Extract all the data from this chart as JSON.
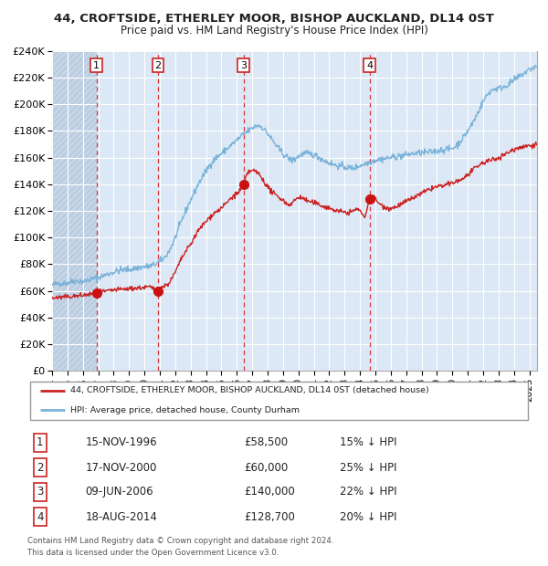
{
  "title1": "44, CROFTSIDE, ETHERLEY MOOR, BISHOP AUCKLAND, DL14 0ST",
  "title2": "Price paid vs. HM Land Registry's House Price Index (HPI)",
  "legend_line1": "44, CROFTSIDE, ETHERLEY MOOR, BISHOP AUCKLAND, DL14 0ST (detached house)",
  "legend_line2": "HPI: Average price, detached house, County Durham",
  "footer1": "Contains HM Land Registry data © Crown copyright and database right 2024.",
  "footer2": "This data is licensed under the Open Government Licence v3.0.",
  "transactions": [
    {
      "num": 1,
      "date": "15-NOV-1996",
      "price": 58500,
      "price_str": "£58,500",
      "pct": "15%",
      "x_year": 1996.88
    },
    {
      "num": 2,
      "date": "17-NOV-2000",
      "price": 60000,
      "price_str": "£60,000",
      "pct": "25%",
      "x_year": 2000.88
    },
    {
      "num": 3,
      "date": "09-JUN-2006",
      "price": 140000,
      "price_str": "£140,000",
      "pct": "22%",
      "x_year": 2006.44
    },
    {
      "num": 4,
      "date": "18-AUG-2014",
      "price": 128700,
      "price_str": "£128,700",
      "pct": "20%",
      "x_year": 2014.63
    }
  ],
  "xmin": 1994.0,
  "xmax": 2025.5,
  "ymin": 0,
  "ymax": 240000,
  "ytick_vals": [
    0,
    20000,
    40000,
    60000,
    80000,
    100000,
    120000,
    140000,
    160000,
    180000,
    200000,
    220000,
    240000
  ],
  "ytick_labels": [
    "£0",
    "£20K",
    "£40K",
    "£60K",
    "£80K",
    "£100K",
    "£120K",
    "£140K",
    "£160K",
    "£180K",
    "£200K",
    "£220K",
    "£240K"
  ],
  "background_color": "#ffffff",
  "plot_bg_color": "#dce8f5",
  "hatch_color": "#c5d5e8",
  "grid_color": "#ffffff",
  "hpi_color": "#7ab3d9",
  "price_color": "#cc2222",
  "dashed_line_color": "#dd3333",
  "marker_color": "#cc1111",
  "hpi_pts": [
    [
      1994.0,
      64000
    ],
    [
      1994.5,
      65500
    ],
    [
      1995.0,
      66000
    ],
    [
      1995.5,
      67500
    ],
    [
      1996.0,
      67000
    ],
    [
      1996.5,
      68500
    ],
    [
      1997.0,
      70000
    ],
    [
      1997.5,
      72000
    ],
    [
      1998.0,
      74000
    ],
    [
      1998.5,
      75500
    ],
    [
      1999.0,
      76000
    ],
    [
      1999.5,
      77000
    ],
    [
      2000.0,
      78000
    ],
    [
      2000.5,
      79000
    ],
    [
      2001.0,
      82000
    ],
    [
      2001.5,
      88000
    ],
    [
      2002.0,
      100000
    ],
    [
      2002.5,
      115000
    ],
    [
      2003.0,
      128000
    ],
    [
      2003.5,
      140000
    ],
    [
      2004.0,
      150000
    ],
    [
      2004.5,
      158000
    ],
    [
      2005.0,
      163000
    ],
    [
      2005.5,
      168000
    ],
    [
      2006.0,
      173000
    ],
    [
      2006.5,
      178000
    ],
    [
      2007.0,
      182000
    ],
    [
      2007.3,
      184000
    ],
    [
      2007.6,
      183000
    ],
    [
      2008.0,
      178000
    ],
    [
      2008.5,
      170000
    ],
    [
      2009.0,
      163000
    ],
    [
      2009.3,
      160000
    ],
    [
      2009.6,
      158000
    ],
    [
      2010.0,
      161000
    ],
    [
      2010.5,
      163000
    ],
    [
      2011.0,
      162000
    ],
    [
      2011.5,
      159000
    ],
    [
      2012.0,
      156000
    ],
    [
      2012.5,
      154000
    ],
    [
      2013.0,
      153000
    ],
    [
      2013.5,
      152000
    ],
    [
      2014.0,
      154000
    ],
    [
      2014.5,
      156000
    ],
    [
      2015.0,
      158000
    ],
    [
      2015.5,
      159000
    ],
    [
      2016.0,
      160000
    ],
    [
      2016.5,
      161000
    ],
    [
      2017.0,
      162000
    ],
    [
      2017.5,
      163000
    ],
    [
      2018.0,
      163500
    ],
    [
      2018.5,
      164000
    ],
    [
      2019.0,
      165000
    ],
    [
      2019.5,
      166000
    ],
    [
      2020.0,
      167000
    ],
    [
      2020.5,
      172000
    ],
    [
      2021.0,
      180000
    ],
    [
      2021.5,
      190000
    ],
    [
      2022.0,
      202000
    ],
    [
      2022.5,
      210000
    ],
    [
      2023.0,
      212000
    ],
    [
      2023.5,
      214000
    ],
    [
      2024.0,
      218000
    ],
    [
      2024.5,
      222000
    ],
    [
      2025.0,
      226000
    ],
    [
      2025.5,
      228000
    ]
  ],
  "price_pts": [
    [
      1994.0,
      54500
    ],
    [
      1994.5,
      55000
    ],
    [
      1995.0,
      55500
    ],
    [
      1995.5,
      56000
    ],
    [
      1996.0,
      56500
    ],
    [
      1996.5,
      57500
    ],
    [
      1996.88,
      58500
    ],
    [
      1997.0,
      58800
    ],
    [
      1997.5,
      59500
    ],
    [
      1998.0,
      60500
    ],
    [
      1998.5,
      61000
    ],
    [
      1999.0,
      61500
    ],
    [
      1999.5,
      62000
    ],
    [
      2000.0,
      62500
    ],
    [
      2000.5,
      62000
    ],
    [
      2000.88,
      60000
    ],
    [
      2001.0,
      61500
    ],
    [
      2001.5,
      65000
    ],
    [
      2002.0,
      74000
    ],
    [
      2002.5,
      86000
    ],
    [
      2003.0,
      95000
    ],
    [
      2003.5,
      105000
    ],
    [
      2004.0,
      112000
    ],
    [
      2004.5,
      118000
    ],
    [
      2005.0,
      122000
    ],
    [
      2005.5,
      128000
    ],
    [
      2006.0,
      133000
    ],
    [
      2006.44,
      140000
    ],
    [
      2006.7,
      148000
    ],
    [
      2007.0,
      150000
    ],
    [
      2007.3,
      149000
    ],
    [
      2007.6,
      145000
    ],
    [
      2008.0,
      138000
    ],
    [
      2008.5,
      132000
    ],
    [
      2009.0,
      128000
    ],
    [
      2009.3,
      125000
    ],
    [
      2009.6,
      126000
    ],
    [
      2010.0,
      130000
    ],
    [
      2010.5,
      128000
    ],
    [
      2011.0,
      126000
    ],
    [
      2011.5,
      124000
    ],
    [
      2012.0,
      122000
    ],
    [
      2012.5,
      120000
    ],
    [
      2013.0,
      119000
    ],
    [
      2013.5,
      119500
    ],
    [
      2014.0,
      120000
    ],
    [
      2014.3,
      116000
    ],
    [
      2014.63,
      128700
    ],
    [
      2015.0,
      129000
    ],
    [
      2015.3,
      125000
    ],
    [
      2015.6,
      123000
    ],
    [
      2016.0,
      122000
    ],
    [
      2016.5,
      124000
    ],
    [
      2017.0,
      127000
    ],
    [
      2017.5,
      130000
    ],
    [
      2018.0,
      133000
    ],
    [
      2018.5,
      136000
    ],
    [
      2019.0,
      138000
    ],
    [
      2019.5,
      139000
    ],
    [
      2020.0,
      141000
    ],
    [
      2020.5,
      143000
    ],
    [
      2021.0,
      147000
    ],
    [
      2021.5,
      152000
    ],
    [
      2022.0,
      156000
    ],
    [
      2022.5,
      158000
    ],
    [
      2023.0,
      160000
    ],
    [
      2023.5,
      163000
    ],
    [
      2024.0,
      166000
    ],
    [
      2024.5,
      168000
    ],
    [
      2025.0,
      169000
    ],
    [
      2025.5,
      170000
    ]
  ]
}
